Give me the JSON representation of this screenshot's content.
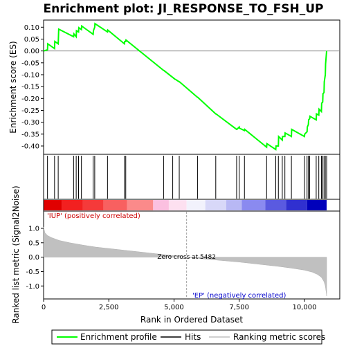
{
  "chart_data": {
    "type": "line",
    "title": "Enrichment plot: JI_RESPONSE_TO_FSH_UP",
    "top_panel": {
      "ylabel": "Enrichment score (ES)",
      "ylim": [
        -0.435,
        0.13
      ],
      "yticks": [
        0.1,
        0.05,
        0.0,
        -0.05,
        -0.1,
        -0.15,
        -0.2,
        -0.25,
        -0.3,
        -0.35,
        -0.4
      ],
      "ytick_labels": [
        "0.10",
        "0.05",
        "0.00",
        "-0.05",
        "-0.10",
        "-0.15",
        "-0.20",
        "-0.25",
        "-0.30",
        "-0.35",
        "-0.40"
      ],
      "series": [
        {
          "name": "Enrichment profile",
          "color": "#00ff00",
          "x": [
            0,
            150,
            160,
            420,
            430,
            560,
            580,
            1150,
            1160,
            1250,
            1260,
            1340,
            1350,
            1450,
            1460,
            1900,
            1910,
            1960,
            1970,
            2450,
            2460,
            3100,
            3110,
            3150,
            3160,
            4600,
            4610,
            5050,
            5060,
            5200,
            5210,
            5900,
            5910,
            6600,
            6610,
            7400,
            7410,
            7500,
            7510,
            7700,
            7710,
            8550,
            8560,
            8900,
            8910,
            9000,
            9010,
            9150,
            9160,
            9250,
            9260,
            9500,
            9510,
            10000,
            10010,
            10100,
            10110,
            10150,
            10160,
            10200,
            10210,
            10450,
            10460,
            10550,
            10560,
            10650,
            10660,
            10700,
            10710,
            10750,
            10760,
            10800,
            10810,
            10850
          ],
          "y": [
            0.0,
            0.005,
            0.03,
            0.01,
            0.04,
            0.03,
            0.092,
            0.06,
            0.072,
            0.06,
            0.085,
            0.08,
            0.098,
            0.09,
            0.105,
            0.07,
            0.085,
            0.1,
            0.115,
            0.08,
            0.088,
            0.03,
            0.04,
            0.04,
            0.046,
            -0.082,
            -0.082,
            -0.12,
            -0.12,
            -0.13,
            -0.13,
            -0.195,
            -0.195,
            -0.265,
            -0.265,
            -0.33,
            -0.33,
            -0.32,
            -0.325,
            -0.335,
            -0.33,
            -0.405,
            -0.39,
            -0.415,
            -0.4,
            -0.4,
            -0.36,
            -0.375,
            -0.36,
            -0.36,
            -0.345,
            -0.36,
            -0.33,
            -0.36,
            -0.35,
            -0.34,
            -0.32,
            -0.31,
            -0.29,
            -0.285,
            -0.275,
            -0.29,
            -0.265,
            -0.27,
            -0.245,
            -0.255,
            -0.22,
            -0.215,
            -0.18,
            -0.175,
            -0.13,
            -0.1,
            -0.055,
            0.0
          ]
        }
      ]
    },
    "hits": [
      150,
      420,
      560,
      1150,
      1250,
      1340,
      1450,
      1900,
      1960,
      2450,
      3100,
      3150,
      4600,
      4950,
      5200,
      5900,
      6600,
      7400,
      7500,
      7700,
      8550,
      8900,
      9000,
      9150,
      9250,
      9500,
      10000,
      10100,
      10150,
      10200,
      10450,
      10550,
      10650,
      10700,
      10750,
      10800,
      10850
    ],
    "bottom_panel": {
      "ylabel": "Ranked list metric (Signal2Noise)",
      "xlabel": "Rank in Ordered Dataset",
      "ylim": [
        -1.45,
        1.6
      ],
      "yticks": [
        1.0,
        0.5,
        0.0,
        -0.5,
        -1.0
      ],
      "ytick_labels": [
        "1.0",
        "0.5",
        "0.0",
        "-0.5",
        "-1.0"
      ],
      "xlim": [
        0,
        10850
      ],
      "xticks": [
        0,
        2500,
        5000,
        7500,
        10000
      ],
      "xtick_labels": [
        "0",
        "2,500",
        "5,000",
        "7,500",
        "10,000"
      ],
      "metric_profile": {
        "x": [
          0,
          50,
          150,
          300,
          600,
          1000,
          1500,
          2000,
          2500,
          3000,
          3500,
          4000,
          4500,
          5000,
          5482,
          6000,
          6500,
          7000,
          7500,
          8000,
          8500,
          9000,
          9500,
          10000,
          10300,
          10500,
          10650,
          10750,
          10800,
          10830,
          10850
        ],
        "y": [
          1.05,
          0.85,
          0.75,
          0.68,
          0.58,
          0.5,
          0.42,
          0.35,
          0.3,
          0.25,
          0.2,
          0.15,
          0.1,
          0.05,
          0.0,
          -0.05,
          -0.09,
          -0.13,
          -0.17,
          -0.22,
          -0.27,
          -0.32,
          -0.38,
          -0.45,
          -0.52,
          -0.6,
          -0.7,
          -0.85,
          -1.0,
          -1.2,
          -1.35
        ]
      },
      "zero_cross_label": "Zero cross at 5482",
      "zero_cross": 5482,
      "pos_label": "'IUP' (positively correlated)",
      "neg_label": "'EP' (negatively correlated)"
    },
    "legend": {
      "placement": "bottom",
      "items": [
        {
          "label": "Enrichment profile",
          "color": "#00ff00"
        },
        {
          "label": "Hits",
          "color": "#000000"
        },
        {
          "label": "Ranking metric scores",
          "color": "#c0c0c0"
        }
      ]
    }
  }
}
